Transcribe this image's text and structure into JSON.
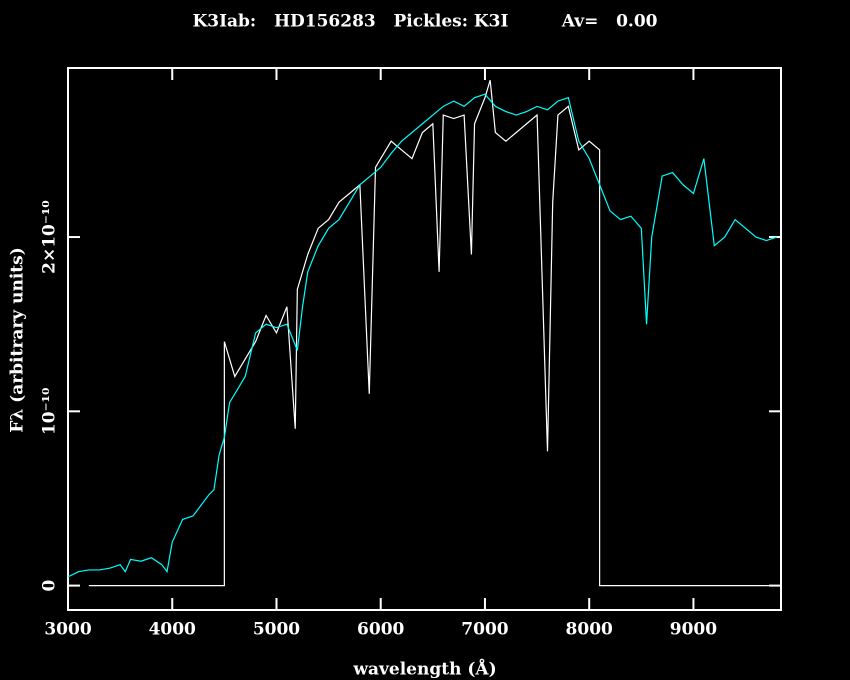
{
  "chart_data": {
    "type": "line",
    "title": "K3Iab:   HD156283   Pickles: K3I         Av=   0.00",
    "xlabel": "wavelength (Å)",
    "ylabel": "Fλ (arbitrary units)",
    "xlim": [
      3000,
      9840
    ],
    "ylim": [
      -1.4e-11,
      2.97e-10
    ],
    "xticks": [
      3000,
      4000,
      5000,
      6000,
      7000,
      8000,
      9000
    ],
    "yticks": [
      0,
      {
        "value": 1e-10,
        "label": "10⁻¹⁰"
      },
      {
        "value": 2e-10,
        "label": "2×10⁻¹⁰"
      }
    ],
    "series": [
      {
        "name": "HD156283",
        "color": "#ffffff",
        "x": [
          3200,
          4500,
          4500,
          4600,
          4700,
          4800,
          4900,
          5000,
          5100,
          5180,
          5200,
          5300,
          5400,
          5500,
          5600,
          5700,
          5800,
          5890,
          5950,
          6000,
          6100,
          6200,
          6300,
          6400,
          6500,
          6560,
          6600,
          6700,
          6800,
          6870,
          6900,
          7000,
          7050,
          7100,
          7200,
          7300,
          7400,
          7500,
          7600,
          7650,
          7700,
          7800,
          7900,
          8000,
          8100,
          8100,
          9800
        ],
        "values": [
          0,
          0,
          1.4e-10,
          1.2e-10,
          1.3e-10,
          1.4e-10,
          1.55e-10,
          1.45e-10,
          1.6e-10,
          9e-11,
          1.7e-10,
          1.9e-10,
          2.05e-10,
          2.1e-10,
          2.2e-10,
          2.25e-10,
          2.3e-10,
          1.1e-10,
          2.4e-10,
          2.45e-10,
          2.55e-10,
          2.5e-10,
          2.45e-10,
          2.6e-10,
          2.65e-10,
          1.8e-10,
          2.7e-10,
          2.68e-10,
          2.7e-10,
          1.9e-10,
          2.65e-10,
          2.8e-10,
          2.9e-10,
          2.6e-10,
          2.55e-10,
          2.6e-10,
          2.65e-10,
          2.7e-10,
          7.7e-11,
          2.2e-10,
          2.7e-10,
          2.75e-10,
          2.5e-10,
          2.55e-10,
          2.5e-10,
          0,
          0
        ]
      },
      {
        "name": "Pickles: K3I",
        "color": "#00ffff",
        "x": [
          3000,
          3100,
          3200,
          3300,
          3400,
          3500,
          3550,
          3600,
          3700,
          3800,
          3900,
          3950,
          4000,
          4100,
          4200,
          4300,
          4350,
          4400,
          4450,
          4500,
          4550,
          4600,
          4700,
          4800,
          4900,
          5000,
          5100,
          5200,
          5250,
          5300,
          5400,
          5500,
          5600,
          5700,
          5800,
          5900,
          6000,
          6100,
          6200,
          6300,
          6400,
          6500,
          6600,
          6700,
          6800,
          6900,
          7000,
          7100,
          7200,
          7300,
          7400,
          7500,
          7600,
          7700,
          7800,
          7900,
          8000,
          8100,
          8200,
          8300,
          8400,
          8500,
          8550,
          8600,
          8700,
          8800,
          8900,
          9000,
          9100,
          9200,
          9300,
          9400,
          9500,
          9600,
          9700,
          9800
        ],
        "values": [
          5e-12,
          8e-12,
          9e-12,
          9e-12,
          1e-11,
          1.2e-11,
          8e-12,
          1.5e-11,
          1.4e-11,
          1.6e-11,
          1.2e-11,
          8e-12,
          2.5e-11,
          3.8e-11,
          4e-11,
          4.8e-11,
          5.2e-11,
          5.5e-11,
          7.5e-11,
          8.5e-11,
          1.05e-10,
          1.1e-10,
          1.2e-10,
          1.45e-10,
          1.5e-10,
          1.48e-10,
          1.5e-10,
          1.35e-10,
          1.6e-10,
          1.8e-10,
          1.95e-10,
          2.05e-10,
          2.1e-10,
          2.2e-10,
          2.3e-10,
          2.35e-10,
          2.4e-10,
          2.48e-10,
          2.55e-10,
          2.6e-10,
          2.65e-10,
          2.7e-10,
          2.75e-10,
          2.78e-10,
          2.75e-10,
          2.8e-10,
          2.82e-10,
          2.75e-10,
          2.72e-10,
          2.7e-10,
          2.72e-10,
          2.75e-10,
          2.73e-10,
          2.78e-10,
          2.8e-10,
          2.55e-10,
          2.45e-10,
          2.3e-10,
          2.15e-10,
          2.1e-10,
          2.12e-10,
          2.05e-10,
          1.5e-10,
          2e-10,
          2.35e-10,
          2.37e-10,
          2.3e-10,
          2.25e-10,
          2.45e-10,
          1.95e-10,
          2e-10,
          2.1e-10,
          2.05e-10,
          2e-10,
          1.98e-10,
          2e-10
        ]
      }
    ]
  }
}
